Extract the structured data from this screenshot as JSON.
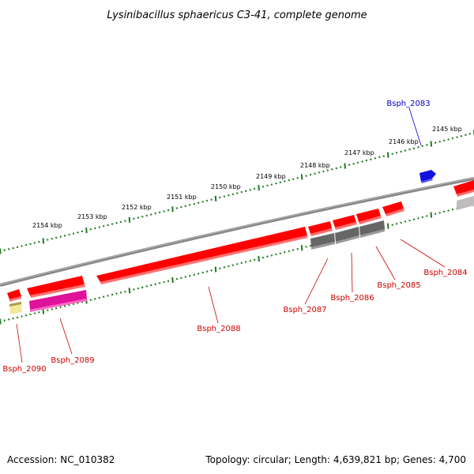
{
  "title": "Lysinibacillus sphaericus C3-41, complete genome",
  "footer": {
    "accession": "Accession: NC_010382",
    "summary": "Topology: circular; Length: 4,639,821 bp; Genes: 4,700"
  },
  "colors": {
    "backbone": "#8a8a8a",
    "tick": "#1f7a1f",
    "gene_red": "#ff0000",
    "gene_blue": "#1010e0",
    "gene_gray": "#666666",
    "gene_magenta": "#e0119a",
    "gene_yellow": "#f0e89a",
    "label_red": "#cc0000",
    "label_blue": "#0000cc"
  },
  "ticks": [
    "2154 kbp",
    "2153 kbp",
    "2152 kbp",
    "2151 kbp",
    "2150 kbp",
    "2149 kbp",
    "2148 kbp",
    "2147 kbp",
    "2146 kbp",
    "2145 kbp"
  ],
  "genes": [
    {
      "name": "Bsph_2083",
      "color": "blue"
    },
    {
      "name": "Bsph_2084",
      "color": "red"
    },
    {
      "name": "Bsph_2085",
      "color": "red"
    },
    {
      "name": "Bsph_2086",
      "color": "red"
    },
    {
      "name": "Bsph_2087",
      "color": "red"
    },
    {
      "name": "Bsph_2088",
      "color": "red"
    },
    {
      "name": "Bsph_2089",
      "color": "red"
    },
    {
      "name": "Bsph_2090",
      "color": "red"
    }
  ]
}
